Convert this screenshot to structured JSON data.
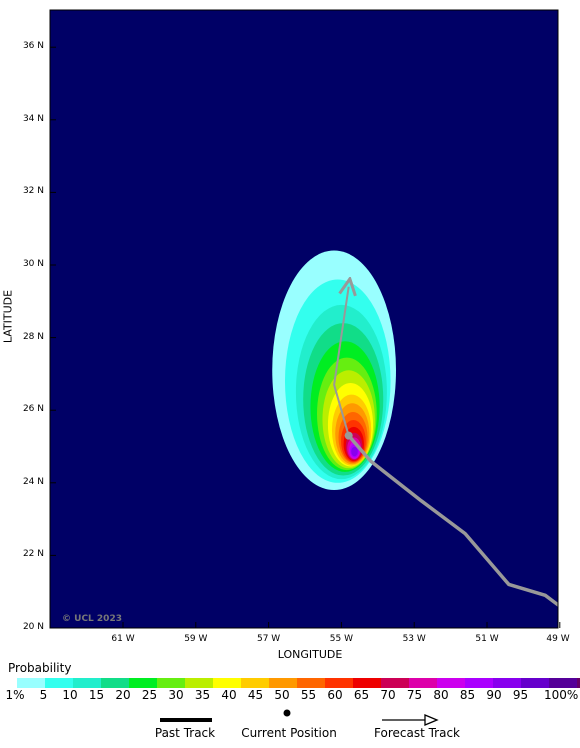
{
  "map": {
    "copyright": "© UCL 2023",
    "colors": {
      "ocean": "#000066",
      "track": "#999999",
      "land": "#ffffff"
    }
  },
  "axes": {
    "x_title": "LONGITUDE",
    "y_title": "LATITUDE",
    "lat_ticks": [
      {
        "value": 36,
        "label": "36 N"
      },
      {
        "value": 34,
        "label": "34 N"
      },
      {
        "value": 32,
        "label": "32 N"
      },
      {
        "value": 30,
        "label": "30 N"
      },
      {
        "value": 28,
        "label": "28 N"
      },
      {
        "value": 26,
        "label": "26 N"
      },
      {
        "value": 24,
        "label": "24 N"
      },
      {
        "value": 22,
        "label": "22 N"
      },
      {
        "value": 20,
        "label": "20 N"
      }
    ],
    "lon_ticks": [
      {
        "value": -61,
        "label": "61 W"
      },
      {
        "value": -59,
        "label": "59 W"
      },
      {
        "value": -57,
        "label": "57 W"
      },
      {
        "value": -55,
        "label": "55 W"
      },
      {
        "value": -53,
        "label": "53 W"
      },
      {
        "value": -51,
        "label": "51 W"
      },
      {
        "value": -49,
        "label": "49 W"
      }
    ],
    "lon_range": [
      -63,
      -49
    ],
    "lat_range": [
      20,
      37
    ]
  },
  "storm": {
    "past_track": [
      [
        -49.0,
        20.6
      ],
      [
        -49.4,
        20.9
      ],
      [
        -50.4,
        21.2
      ],
      [
        -51.6,
        22.6
      ],
      [
        -52.8,
        23.5
      ],
      [
        -54.2,
        24.6
      ],
      [
        -54.8,
        25.3
      ]
    ],
    "current_position": [
      -54.8,
      25.3
    ],
    "forecast_track": [
      [
        -54.8,
        25.3
      ],
      [
        -55.2,
        26.7
      ],
      [
        -54.8,
        29.4
      ]
    ],
    "probability_field": [
      {
        "level": 1,
        "color": "#99ffff",
        "cx": -55.2,
        "cy": 27.1,
        "rx": 1.7,
        "ry": 3.3
      },
      {
        "level": 5,
        "color": "#33ffee",
        "cx": -55.1,
        "cy": 26.8,
        "rx": 1.45,
        "ry": 2.8
      },
      {
        "level": 10,
        "color": "#22eecc",
        "cx": -55.0,
        "cy": 26.5,
        "rx": 1.25,
        "ry": 2.4
      },
      {
        "level": 15,
        "color": "#11dd88",
        "cx": -54.95,
        "cy": 26.3,
        "rx": 1.1,
        "ry": 2.1
      },
      {
        "level": 20,
        "color": "#00ee22",
        "cx": -54.9,
        "cy": 26.1,
        "rx": 0.95,
        "ry": 1.8
      },
      {
        "level": 25,
        "color": "#66ee11",
        "cx": -54.85,
        "cy": 25.9,
        "rx": 0.82,
        "ry": 1.55
      },
      {
        "level": 30,
        "color": "#bbee00",
        "cx": -54.8,
        "cy": 25.75,
        "rx": 0.72,
        "ry": 1.35
      },
      {
        "level": 35,
        "color": "#ffff00",
        "cx": -54.75,
        "cy": 25.6,
        "rx": 0.62,
        "ry": 1.15
      },
      {
        "level": 40,
        "color": "#ffcc00",
        "cx": -54.72,
        "cy": 25.45,
        "rx": 0.54,
        "ry": 0.98
      },
      {
        "level": 45,
        "color": "#ff9900",
        "cx": -54.7,
        "cy": 25.35,
        "rx": 0.47,
        "ry": 0.84
      },
      {
        "level": 50,
        "color": "#ff6600",
        "cx": -54.68,
        "cy": 25.25,
        "rx": 0.4,
        "ry": 0.7
      },
      {
        "level": 55,
        "color": "#ff3300",
        "cx": -54.67,
        "cy": 25.15,
        "rx": 0.34,
        "ry": 0.58
      },
      {
        "level": 60,
        "color": "#ee0000",
        "cx": -54.66,
        "cy": 25.07,
        "rx": 0.28,
        "ry": 0.47
      },
      {
        "level": 65,
        "color": "#cc0055",
        "cx": -54.65,
        "cy": 25.0,
        "rx": 0.23,
        "ry": 0.38
      },
      {
        "level": 70,
        "color": "#dd00aa",
        "cx": -54.65,
        "cy": 24.95,
        "rx": 0.19,
        "ry": 0.3
      },
      {
        "level": 75,
        "color": "#cc00ee",
        "cx": -54.64,
        "cy": 24.9,
        "rx": 0.15,
        "ry": 0.24
      },
      {
        "level": 80,
        "color": "#aa00ff",
        "cx": -54.64,
        "cy": 24.88,
        "rx": 0.12,
        "ry": 0.18
      },
      {
        "level": 85,
        "color": "#8800ee",
        "cx": -54.64,
        "cy": 24.86,
        "rx": 0.09,
        "ry": 0.13
      }
    ]
  },
  "legend": {
    "title": "Probability",
    "swatches": [
      "#99ffff",
      "#33ffee",
      "#22eecc",
      "#11dd88",
      "#00ee22",
      "#66ee11",
      "#bbee00",
      "#ffff00",
      "#ffcc00",
      "#ff9900",
      "#ff6600",
      "#ff3300",
      "#ee0000",
      "#cc0055",
      "#dd00aa",
      "#cc00ee",
      "#aa00ff",
      "#8800ee",
      "#6600cc",
      "#550099",
      "#660066"
    ],
    "labels": [
      "1%",
      "5",
      "10",
      "15",
      "20",
      "25",
      "30",
      "35",
      "40",
      "45",
      "50",
      "55",
      "60",
      "65",
      "70",
      "75",
      "80",
      "85",
      "90",
      "95",
      "100%"
    ]
  },
  "key": {
    "past_track": "Past Track",
    "current_position": "Current Position",
    "forecast_track": "Forecast Track"
  }
}
